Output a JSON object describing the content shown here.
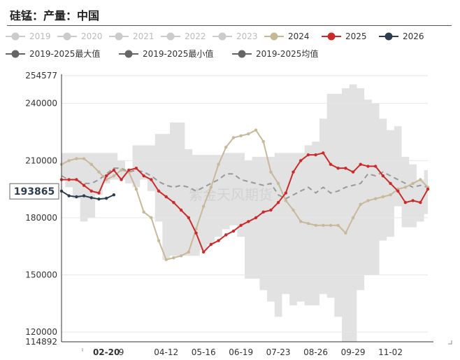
{
  "title": "硅锰：产量：中国",
  "watermark": "紫金天风期货",
  "colors": {
    "inactive": "#cccccc",
    "y2024": "#c8b89a",
    "y2025": "#cc2a2a",
    "y2026": "#2c3e50",
    "band": "#e2e2e2",
    "mean": "#999999",
    "stat_marker": "#666666"
  },
  "chart_data": {
    "type": "line",
    "title": "硅锰：产量：中国",
    "ylim": [
      114892,
      254577
    ],
    "yticks": [
      "254577",
      "240000",
      "210000",
      "180000",
      "150000",
      "120000",
      "114892"
    ],
    "y_pointer_label": "193865",
    "x_tick_labels": [
      "02-20",
      "9",
      "04-12",
      "05-16",
      "06-19",
      "07-23",
      "08-26",
      "09-29",
      "11-02"
    ],
    "x_tick_weeks": [
      6,
      8,
      14,
      19,
      24,
      29,
      34,
      39,
      44
    ],
    "highlighted_x": "02-20",
    "legend": [
      {
        "name": "2019",
        "active": false
      },
      {
        "name": "2020",
        "active": false
      },
      {
        "name": "2021",
        "active": false
      },
      {
        "name": "2022",
        "active": false
      },
      {
        "name": "2023",
        "active": false
      },
      {
        "name": "2024",
        "active": true
      },
      {
        "name": "2025",
        "active": true
      },
      {
        "name": "2026",
        "active": true
      },
      {
        "name": "2019-2025最大值",
        "active": true
      },
      {
        "name": "2019-2025最小值",
        "active": true
      },
      {
        "name": "2019-2025均值",
        "active": true
      }
    ],
    "band_max": [
      214000,
      214000,
      214000,
      214000,
      214000,
      214000,
      214000,
      214000,
      210000,
      204000,
      218000,
      218000,
      218000,
      224000,
      224000,
      230000,
      230000,
      216000,
      213000,
      213000,
      213000,
      213000,
      214000,
      214000,
      214000,
      210000,
      212000,
      212000,
      212000,
      214000,
      214000,
      214000,
      214000,
      218000,
      220000,
      232000,
      245000,
      245000,
      248000,
      250000,
      248000,
      242000,
      240000,
      232000,
      226000,
      228000,
      212000,
      208000,
      200000,
      205000
    ],
    "band_min": [
      202000,
      196000,
      190000,
      178000,
      180000,
      192000,
      198000,
      200000,
      200000,
      198000,
      196000,
      200000,
      194000,
      178000,
      158000,
      160000,
      160000,
      160000,
      160000,
      163000,
      166000,
      170000,
      174000,
      176000,
      170000,
      148000,
      148000,
      142000,
      136000,
      128000,
      140000,
      134000,
      136000,
      134000,
      134000,
      140000,
      138000,
      128000,
      114892,
      114892,
      142000,
      150000,
      150000,
      168000,
      170000,
      186000,
      175000,
      175000,
      178000,
      182000
    ],
    "mean": [
      202000,
      200000,
      200000,
      198000,
      198000,
      200000,
      203000,
      206000,
      206000,
      204000,
      205000,
      204000,
      202000,
      199000,
      197000,
      196000,
      197000,
      196000,
      194000,
      196000,
      198000,
      200000,
      203000,
      203000,
      200000,
      199000,
      198000,
      197000,
      198000,
      192000,
      190000,
      192000,
      194000,
      196000,
      193000,
      196000,
      193000,
      194000,
      196000,
      197000,
      198000,
      203000,
      202000,
      204000,
      202000,
      200000,
      198000,
      196000,
      197000,
      196000
    ],
    "series": [
      {
        "name": "2024",
        "x": [
          0,
          1,
          2,
          3,
          4,
          5,
          6,
          7,
          8,
          9,
          10,
          11,
          12,
          13,
          14,
          15,
          16,
          17,
          18,
          19,
          20,
          21,
          22,
          23,
          24,
          25,
          26,
          27,
          28,
          29,
          30,
          31,
          32,
          33,
          34,
          35,
          36,
          37,
          38,
          39,
          40,
          41,
          42,
          43,
          44,
          45,
          46,
          47,
          48,
          49
        ],
        "values": [
          208000,
          210000,
          211000,
          211000,
          208000,
          204000,
          200000,
          202000,
          205000,
          204000,
          195000,
          183000,
          180000,
          168000,
          158000,
          159000,
          160000,
          162000,
          174000,
          186000,
          196000,
          208000,
          217000,
          222000,
          223000,
          224000,
          226000,
          220000,
          204000,
          198000,
          189000,
          184000,
          178000,
          177000,
          176000,
          176000,
          176000,
          176000,
          172000,
          180000,
          187000,
          189000,
          190000,
          191000,
          192000,
          195000,
          196000,
          198000,
          200000,
          196000
        ]
      },
      {
        "name": "2025",
        "x": [
          0,
          1,
          2,
          3,
          4,
          5,
          6,
          7,
          8,
          9,
          10,
          11,
          12,
          13,
          14,
          15,
          16,
          17,
          18,
          19,
          20,
          21,
          22,
          23,
          24,
          25,
          26,
          27,
          28,
          29,
          30,
          31,
          32,
          33,
          34,
          35,
          36,
          37,
          38,
          39,
          40,
          41,
          42,
          43,
          44,
          45,
          46,
          47,
          48,
          49
        ],
        "values": [
          200000,
          200000,
          200000,
          197000,
          194000,
          193000,
          202000,
          205000,
          200000,
          205000,
          206000,
          202000,
          200000,
          194000,
          191000,
          188000,
          184000,
          180000,
          172000,
          162000,
          166000,
          168000,
          171000,
          173000,
          176000,
          178000,
          180000,
          183000,
          184000,
          188000,
          193000,
          204000,
          210000,
          213000,
          213000,
          214000,
          208000,
          206000,
          206000,
          204000,
          208000,
          207000,
          207000,
          202000,
          198000,
          194000,
          188000,
          189000,
          188000,
          195000
        ]
      },
      {
        "name": "2026",
        "x": [
          0,
          1,
          2,
          3,
          4,
          5,
          6,
          7
        ],
        "values": [
          194000,
          191500,
          191000,
          191500,
          190500,
          189800,
          190200,
          192000
        ]
      }
    ]
  }
}
